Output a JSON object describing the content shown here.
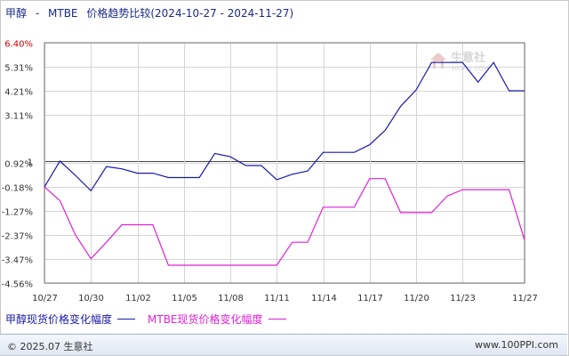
{
  "title": {
    "product": "甲醇",
    "separator": "-",
    "compare": "MTBE",
    "subject": "价格趋势比较",
    "range": "(2024-10-27 - 2024-11-27)"
  },
  "legend": {
    "items": [
      {
        "label": "甲醇现货价格变化幅度",
        "color": "#1a1aa8"
      },
      {
        "label": "MTBE现货价格变化幅度",
        "color": "#e020d8"
      }
    ]
  },
  "footer": {
    "copyright": "© 2025.07 生意社",
    "site": "www.100PPI.com"
  },
  "watermark": {
    "text": "生意社",
    "sub": "100PPI.COM",
    "icon": "house-logo-icon"
  },
  "colors": {
    "axis": "#777777",
    "grid": "#d5d5d5",
    "baseline": "#444444",
    "ticks": "#333333",
    "ticks_top": "#cc0000"
  },
  "chart_data": {
    "type": "line",
    "ylim": [
      -4.56,
      6.4
    ],
    "y_ticks": [
      6.4,
      5.31,
      4.21,
      3.11,
      1.0,
      0.92,
      -0.18,
      -1.27,
      -2.37,
      -3.47,
      -4.56
    ],
    "y_tick_labels": [
      "6.40%",
      "5.31%",
      "4.21%",
      "3.11%",
      "1",
      "0.92%",
      "-0.18%",
      "-1.27%",
      "-2.37%",
      "-3.47%",
      "-4.56%"
    ],
    "baseline": 1.0,
    "x": [
      "10/27",
      "10/28",
      "10/29",
      "10/30",
      "10/31",
      "11/01",
      "11/02",
      "11/03",
      "11/04",
      "11/05",
      "11/06",
      "11/07",
      "11/08",
      "11/09",
      "11/10",
      "11/11",
      "11/12",
      "11/13",
      "11/14",
      "11/15",
      "11/16",
      "11/17",
      "11/18",
      "11/19",
      "11/20",
      "11/21",
      "11/22",
      "11/23",
      "11/24",
      "11/25",
      "11/26",
      "11/27"
    ],
    "x_tick_labels": [
      "10/27",
      "10/30",
      "11/02",
      "11/05",
      "11/08",
      "11/11",
      "11/14",
      "11/17",
      "11/20",
      "11/23",
      "11/27"
    ],
    "grid": true,
    "legend_position": "bottom",
    "series": [
      {
        "name": "甲醇现货价格变化幅度",
        "color": "#1a1aa8",
        "values": [
          -0.18,
          1.0,
          0.35,
          -0.35,
          0.75,
          0.65,
          0.45,
          0.45,
          0.25,
          0.25,
          0.25,
          1.35,
          1.2,
          0.8,
          0.8,
          0.15,
          0.4,
          0.55,
          1.4,
          1.4,
          1.4,
          1.75,
          2.4,
          3.5,
          4.25,
          5.5,
          5.5,
          5.5,
          4.6,
          5.5,
          4.21,
          4.21
        ]
      },
      {
        "name": "MTBE现货价格变化幅度",
        "color": "#e020d8",
        "values": [
          -0.18,
          -0.8,
          -2.37,
          -3.45,
          -2.7,
          -1.9,
          -1.9,
          -1.9,
          -3.75,
          -3.75,
          -3.75,
          -3.75,
          -3.75,
          -3.75,
          -3.75,
          -3.75,
          -2.7,
          -2.7,
          -1.1,
          -1.1,
          -1.1,
          0.2,
          0.2,
          -1.35,
          -1.35,
          -1.35,
          -0.6,
          -0.3,
          -0.3,
          -0.3,
          -0.3,
          -2.6
        ]
      }
    ]
  }
}
